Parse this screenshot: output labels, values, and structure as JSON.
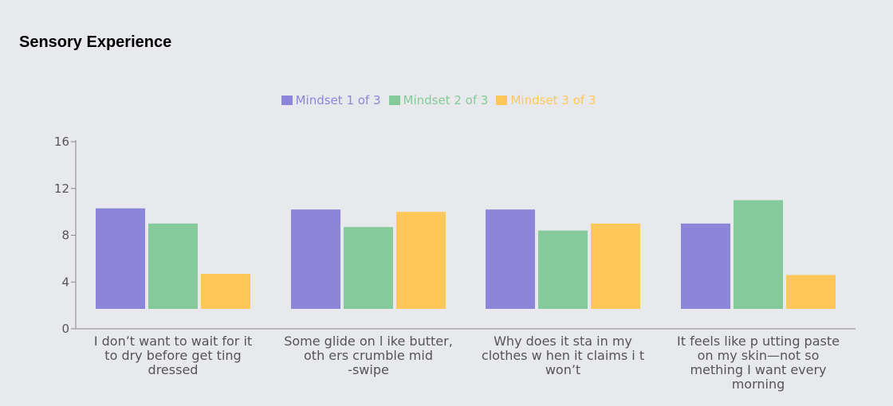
{
  "chart_data": {
    "type": "bar",
    "title": "Sensory Experience",
    "xlabel": "",
    "ylabel": "",
    "ylim": [
      0,
      16
    ],
    "yticks": [
      0,
      4,
      8,
      12,
      16
    ],
    "grid": false,
    "legend_position": "top-center",
    "categories": [
      "I don’t want to wait for it to dry before get ting dressed",
      "Some glide on l ike butter, oth ers crumble mid -swipe",
      "Why does it sta in my clothes w hen it claims i t won’t",
      "It feels like p utting paste on my skin—not so mething I want every morning"
    ],
    "category_lines": [
      [
        "I don’t want to wait for it",
        "to dry before get ting",
        "dressed"
      ],
      [
        "Some glide on l ike butter,",
        "oth ers crumble mid",
        "-swipe"
      ],
      [
        "Why does it sta in my",
        "clothes w hen it claims i t",
        "won’t"
      ],
      [
        "It feels like p utting paste",
        "on my skin—not so",
        "mething I want every",
        "morning"
      ]
    ],
    "series": [
      {
        "name": "Mindset 1 of 3",
        "color": "#8b86da",
        "values": [
          10.3,
          10.2,
          10.2,
          9.0
        ]
      },
      {
        "name": "Mindset 2 of 3",
        "color": "#84ca9b",
        "values": [
          9.0,
          8.7,
          8.4,
          11.0
        ]
      },
      {
        "name": "Mindset 3 of 3",
        "color": "#fec75a",
        "values": [
          4.7,
          10.0,
          9.0,
          4.6
        ]
      }
    ]
  }
}
